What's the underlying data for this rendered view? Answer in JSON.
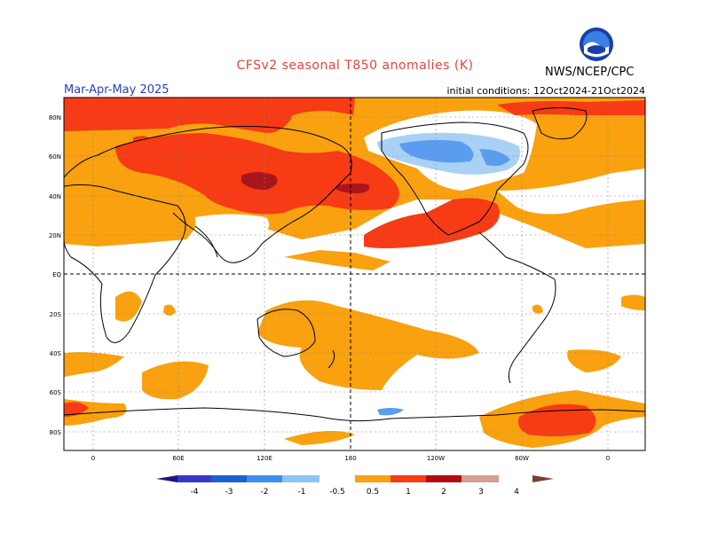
{
  "title": "CFSv2 seasonal T850 anomalies (K)",
  "season": "Mar-Apr-May 2025",
  "initial_conditions": "initial conditions: 12Oct2024-21Oct2024",
  "agency": "NWS/NCEP/CPC",
  "logo_text": "NOAA",
  "lat_labels": [
    "80N",
    "60N",
    "40N",
    "20N",
    "EQ",
    "20S",
    "40S",
    "60S",
    "80S"
  ],
  "lon_labels": [
    "0",
    "60E",
    "120E",
    "180",
    "120W",
    "60W",
    "0"
  ],
  "colorbar": {
    "labels": [
      "-4",
      "-3",
      "-2",
      "-1",
      "-0.5",
      "0.5",
      "1",
      "2",
      "3",
      "4"
    ],
    "colors": [
      "#2a0f7a",
      "#3838c8",
      "#1f5fd0",
      "#3c8ff0",
      "#8ec4f4",
      "#ffffff",
      "#f9a10f",
      "#f73b15",
      "#b30b10",
      "#d0a090",
      "#7a4030"
    ]
  },
  "anomaly_colors": {
    "light_warm": "#f9a10f",
    "warm": "#f73b15",
    "strong_warm": "#a8161c",
    "light_cool": "#a9d1f5",
    "cool": "#5a9cf0"
  }
}
